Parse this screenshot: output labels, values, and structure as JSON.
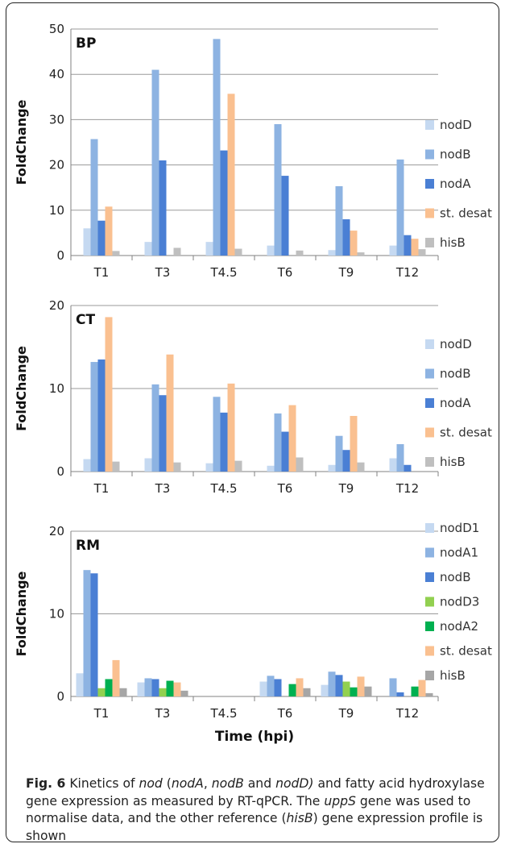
{
  "chart_data": [
    {
      "type": "bar",
      "panel_label": "BP",
      "ylabel": "FoldChange",
      "ylim": [
        0,
        50
      ],
      "yticks": [
        0,
        10,
        20,
        30,
        40,
        50
      ],
      "categories": [
        "T1",
        "T3",
        "T4.5",
        "T6",
        "T9",
        "T12"
      ],
      "series": [
        {
          "name": "nodD",
          "color": "#c5d9f1",
          "values": [
            6,
            3,
            3,
            2.2,
            1.2,
            2.2
          ]
        },
        {
          "name": "nodB",
          "color": "#8db3e2",
          "values": [
            25.7,
            41,
            47.8,
            29,
            15.3,
            21.2
          ]
        },
        {
          "name": "nodA",
          "color": "#4a7fd4",
          "values": [
            7.7,
            21,
            23.2,
            17.6,
            8,
            4.5
          ]
        },
        {
          "name": "st. desat",
          "color": "#fac090",
          "values": [
            10.8,
            0,
            35.7,
            0,
            5.5,
            3.7
          ]
        },
        {
          "name": "hisB",
          "color": "#bfbfbf",
          "values": [
            1,
            1.7,
            1.5,
            1.1,
            0.7,
            1.4
          ]
        }
      ],
      "grid": true,
      "legend": "right"
    },
    {
      "type": "bar",
      "panel_label": "CT",
      "ylabel": "FoldChange",
      "ylim": [
        0,
        20
      ],
      "yticks": [
        0,
        10,
        20
      ],
      "categories": [
        "T1",
        "T3",
        "T4.5",
        "T6",
        "T9",
        "T12"
      ],
      "series": [
        {
          "name": "nodD",
          "color": "#c5d9f1",
          "values": [
            1.5,
            1.6,
            1,
            0.7,
            0.8,
            1.6
          ]
        },
        {
          "name": "nodB",
          "color": "#8db3e2",
          "values": [
            13.2,
            10.5,
            9,
            7,
            4.3,
            3.3
          ]
        },
        {
          "name": "nodA",
          "color": "#4a7fd4",
          "values": [
            13.5,
            9.2,
            7.1,
            4.8,
            2.6,
            0.8
          ]
        },
        {
          "name": "st. desat",
          "color": "#fac090",
          "values": [
            18.6,
            14.1,
            10.6,
            8,
            6.7,
            0
          ]
        },
        {
          "name": "hisB",
          "color": "#bfbfbf",
          "values": [
            1.2,
            1.1,
            1.3,
            1.7,
            1.1,
            0
          ]
        }
      ],
      "grid": true,
      "legend": "right"
    },
    {
      "type": "bar",
      "panel_label": "RM",
      "ylabel": "FoldChange",
      "xlabel": "Time (hpi)",
      "ylim": [
        0,
        20
      ],
      "yticks": [
        0,
        10,
        20
      ],
      "categories": [
        "T1",
        "T3",
        "T4.5",
        "T6",
        "T9",
        "T12"
      ],
      "series": [
        {
          "name": "nodD1",
          "color": "#c5d9f1",
          "values": [
            2.8,
            1.7,
            0,
            1.8,
            1.4,
            0
          ]
        },
        {
          "name": "nodA1",
          "color": "#8db3e2",
          "values": [
            15.3,
            2.2,
            0,
            2.5,
            3,
            2.2
          ]
        },
        {
          "name": "nodB",
          "color": "#4a7fd4",
          "values": [
            14.9,
            2.1,
            0,
            2.1,
            2.6,
            0.5
          ]
        },
        {
          "name": "nodD3",
          "color": "#92d050",
          "values": [
            1,
            1,
            0,
            0,
            1.8,
            0
          ]
        },
        {
          "name": "nodA2",
          "color": "#00b050",
          "values": [
            2.1,
            1.9,
            0,
            1.5,
            1.1,
            1.2
          ]
        },
        {
          "name": "st. desat",
          "color": "#fac090",
          "values": [
            4.4,
            1.7,
            0,
            2.2,
            2.4,
            2
          ]
        },
        {
          "name": "hisB",
          "color": "#a6a6a6",
          "values": [
            1,
            0.7,
            0,
            1,
            1.2,
            0.4
          ]
        }
      ],
      "grid": true,
      "legend": "right"
    }
  ],
  "caption": {
    "fig_label": "Fig. 6",
    "t1": " Kinetics of ",
    "i1": "nod",
    "t2": " (",
    "i2": "nodA",
    "t3": ", ",
    "i3": "nodB",
    "t4": " and ",
    "i4": "nodD)",
    "t5": " and fatty acid hydroxylase gene expression as measured by RT-qPCR. The ",
    "i5": "uppS",
    "t6": " gene was used to normalise data, and the other reference (",
    "i6": "hisB",
    "t7": ") gene expression profile is shown"
  }
}
